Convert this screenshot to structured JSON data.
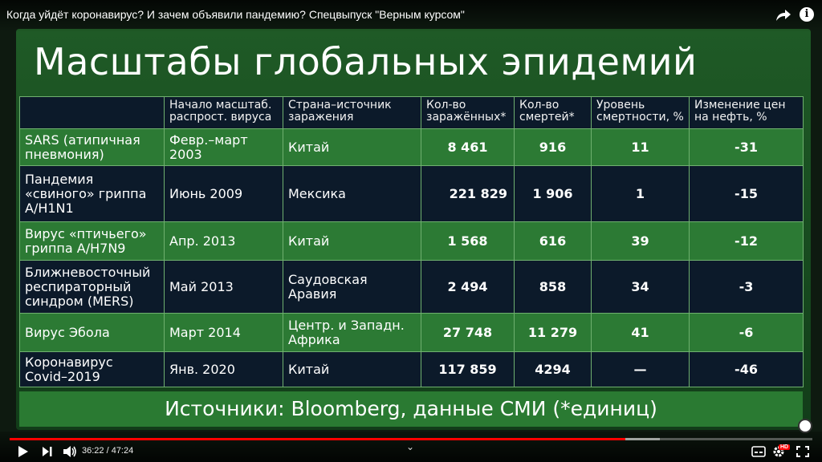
{
  "video": {
    "title": "Когда уйдёт коронавирус? И зачем объявили пандемию? Спецвыпуск \"Верным курсом\"",
    "slide_title": "Масштабы глобальных эпидемий",
    "columns": [
      "",
      "Начало масштаб. распрост. вируса",
      "Страна–источник заражения",
      "Кол-во заражённых*",
      "Кол-во смертей*",
      "Уровень смертности, %",
      "Изменение цен на нефть, %"
    ],
    "rows": [
      {
        "name": "SARS (атипичная пневмония)",
        "start": "Февр.–март 2003",
        "country": "Китай",
        "infected": "8 461",
        "deaths": "916",
        "mortality": "11",
        "oil": "-31"
      },
      {
        "name": "Пандемия «свиного» гриппа A/H1N1",
        "start": "Июнь 2009",
        "country": "Мексика",
        "infected": "221 829",
        "deaths": "1 906",
        "mortality": "1",
        "oil": "-15"
      },
      {
        "name": "Вирус «птичьего» гриппа A/H7N9",
        "start": "Апр. 2013",
        "country": "Китай",
        "infected": "1 568",
        "deaths": "616",
        "mortality": "39",
        "oil": "-12"
      },
      {
        "name": "Ближневосточный респираторный синдром (MERS)",
        "start": "Май 2013",
        "country": "Саудовская Аравия",
        "infected": "2 494",
        "deaths": "858",
        "mortality": "34",
        "oil": "-3"
      },
      {
        "name": "Вирус Эбола",
        "start": "Март 2014",
        "country": "Центр. и Западн. Африка",
        "infected": "27 748",
        "deaths": "11 279",
        "mortality": "41",
        "oil": "-6"
      },
      {
        "name": "Коронавирус Covid–2019",
        "start": "Янв. 2020",
        "country": "Китай",
        "infected": "117 859",
        "deaths": "4294",
        "mortality": "—",
        "oil": "-46"
      }
    ],
    "sources": "Источники: Bloomberg, данные СМИ (*единиц)"
  },
  "player": {
    "current_time": "36:22",
    "duration": "47:24",
    "time_display": "36:22 / 47:24",
    "progress_fraction": 0.767,
    "buffer_fraction": 0.81,
    "hd_badge": "HD"
  },
  "colors": {
    "accent": "#ff0000",
    "slide_green": "#2c7a34",
    "slide_dark": "#0c1a2a",
    "border": "#6fb06f"
  },
  "icons": [
    "share-icon",
    "info-icon",
    "play-icon",
    "next-icon",
    "volume-icon",
    "chevron-up-icon",
    "subtitles-icon",
    "settings-icon",
    "fullscreen-icon"
  ]
}
